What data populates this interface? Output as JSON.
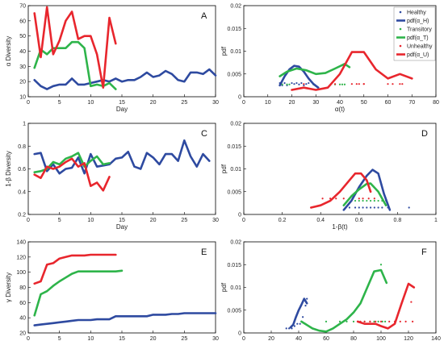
{
  "colors": {
    "healthy": "#2e4aa0",
    "transitory": "#2eb44a",
    "unhealthy": "#e8262d"
  },
  "legend": {
    "panel": "B",
    "entries": [
      {
        "text": "Healthy",
        "color": "#2e4aa0",
        "kind": "dot"
      },
      {
        "text": "pdf(α_H)",
        "color": "#2e4aa0",
        "kind": "line"
      },
      {
        "text": "Transitory",
        "color": "#2eb44a",
        "kind": "dot"
      },
      {
        "text": "pdf(α_T)",
        "color": "#2eb44a",
        "kind": "line"
      },
      {
        "text": "Unhealthy",
        "color": "#e8262d",
        "kind": "dot"
      },
      {
        "text": "pdf(α_U)",
        "color": "#e8262d",
        "kind": "line"
      }
    ]
  },
  "chart_data": [
    {
      "id": "A",
      "letter": "A",
      "type": "line",
      "xlabel": "Day",
      "ylabel": "α Diversity",
      "xlim": [
        0,
        30
      ],
      "ylim": [
        10,
        70
      ],
      "xticks": [
        0,
        5,
        10,
        15,
        20,
        25,
        30
      ],
      "yticks": [
        10,
        20,
        30,
        40,
        50,
        60,
        70
      ],
      "series": [
        {
          "color": "#2e4aa0",
          "x": [
            1,
            2,
            3,
            4,
            5,
            6,
            7,
            8,
            9,
            10,
            11,
            12,
            13,
            14,
            15,
            16,
            17,
            18,
            19,
            20,
            21,
            22,
            23,
            24,
            25,
            26,
            27,
            28,
            29,
            30
          ],
          "y": [
            21,
            17,
            15,
            17,
            18,
            18,
            22,
            18,
            18,
            19,
            20,
            21,
            20,
            22,
            20,
            21,
            21,
            23,
            26,
            23,
            24,
            27,
            25,
            21,
            20,
            26,
            26,
            25,
            28,
            24
          ]
        },
        {
          "color": "#2eb44a",
          "x": [
            1,
            2,
            3,
            4,
            5,
            6,
            7,
            8,
            9,
            10,
            11,
            12,
            13,
            14
          ],
          "y": [
            29,
            41,
            38,
            42,
            42,
            42,
            46,
            46,
            42,
            17,
            18,
            17,
            19,
            15
          ]
        },
        {
          "color": "#e8262d",
          "x": [
            1,
            2,
            3,
            4,
            5,
            6,
            7,
            8,
            9,
            10,
            11,
            12,
            13,
            14
          ],
          "y": [
            65,
            36,
            69,
            38,
            47,
            60,
            66,
            48,
            50,
            50,
            38,
            16,
            62,
            45
          ]
        }
      ]
    },
    {
      "id": "B",
      "letter": "B",
      "type": "line",
      "xlabel": "α(t)",
      "ylabel": "pdf",
      "xlim": [
        0,
        80
      ],
      "ylim": [
        0,
        0.02
      ],
      "xticks": [
        0,
        10,
        20,
        30,
        40,
        50,
        60,
        70,
        80
      ],
      "yticks": [
        0,
        0.005,
        0.01,
        0.015,
        0.02
      ],
      "series": [
        {
          "color": "#2e4aa0",
          "x": [
            15,
            17,
            19,
            21,
            23,
            25,
            27,
            29,
            31
          ],
          "y": [
            0.0025,
            0.0045,
            0.006,
            0.0068,
            0.0066,
            0.0055,
            0.004,
            0.0028,
            0.002
          ]
        },
        {
          "color": "#2eb44a",
          "x": [
            15,
            18,
            22,
            26,
            30,
            34,
            38,
            42,
            44
          ],
          "y": [
            0.0045,
            0.0055,
            0.0062,
            0.0058,
            0.005,
            0.0052,
            0.0062,
            0.0072,
            0.0065
          ]
        },
        {
          "color": "#e8262d",
          "x": [
            20,
            25,
            30,
            35,
            40,
            45,
            50,
            55,
            60,
            65,
            70
          ],
          "y": [
            0.0015,
            0.002,
            0.0015,
            0.002,
            0.005,
            0.0098,
            0.0098,
            0.006,
            0.004,
            0.005,
            0.004
          ]
        }
      ],
      "scatter": [
        {
          "color": "#2e4aa0",
          "x": [
            15,
            16,
            17,
            18,
            20,
            21,
            22,
            23,
            24,
            25,
            26,
            27
          ],
          "y": [
            0.003,
            0.0025,
            0.003,
            0.0025,
            0.003,
            0.0028,
            0.003,
            0.0027,
            0.003,
            0.0025,
            0.0028,
            0.003
          ]
        },
        {
          "color": "#2eb44a",
          "x": [
            16,
            18,
            19,
            29,
            38,
            40,
            41,
            42
          ],
          "y": [
            0.0027,
            0.0027,
            0.0027,
            0.0027,
            0.0027,
            0.0027,
            0.0027,
            0.0027
          ]
        },
        {
          "color": "#e8262d",
          "x": [
            25,
            38,
            45,
            47,
            48,
            50,
            50,
            60,
            62,
            65,
            66
          ],
          "y": [
            0.0028,
            0.0028,
            0.0028,
            0.0028,
            0.0028,
            0.0028,
            0.0028,
            0.0028,
            0.0028,
            0.0028,
            0.0028
          ]
        }
      ]
    },
    {
      "id": "C",
      "letter": "C",
      "type": "line",
      "xlabel": "Day",
      "ylabel": "1-β Diversity",
      "xlim": [
        0,
        30
      ],
      "ylim": [
        0.2,
        1
      ],
      "xticks": [
        0,
        5,
        10,
        15,
        20,
        25,
        30
      ],
      "yticks": [
        0.2,
        0.4,
        0.6,
        0.8,
        1
      ],
      "series": [
        {
          "color": "#2e4aa0",
          "x": [
            1,
            2,
            3,
            4,
            5,
            6,
            7,
            8,
            9,
            10,
            11,
            12,
            13,
            14,
            15,
            16,
            17,
            18,
            19,
            20,
            21,
            22,
            23,
            24,
            25,
            26,
            27,
            28,
            29
          ],
          "y": [
            0.73,
            0.74,
            0.58,
            0.64,
            0.56,
            0.6,
            0.61,
            0.7,
            0.56,
            0.73,
            0.62,
            0.63,
            0.64,
            0.69,
            0.7,
            0.75,
            0.62,
            0.6,
            0.74,
            0.7,
            0.64,
            0.73,
            0.73,
            0.67,
            0.85,
            0.71,
            0.62,
            0.73,
            0.67
          ]
        },
        {
          "color": "#2eb44a",
          "x": [
            1,
            2,
            3,
            4,
            5,
            6,
            7,
            8,
            9,
            10,
            11,
            12,
            13
          ],
          "y": [
            0.57,
            0.58,
            0.6,
            0.66,
            0.64,
            0.69,
            0.71,
            0.74,
            0.62,
            0.67,
            0.71,
            0.64,
            0.65
          ]
        },
        {
          "color": "#e8262d",
          "x": [
            1,
            2,
            3,
            4,
            5,
            6,
            7,
            8,
            9,
            10,
            11,
            12,
            13
          ],
          "y": [
            0.55,
            0.52,
            0.62,
            0.6,
            0.62,
            0.66,
            0.69,
            0.62,
            0.65,
            0.45,
            0.48,
            0.41,
            0.53
          ]
        }
      ]
    },
    {
      "id": "D",
      "letter": "D",
      "type": "line",
      "xlabel": "1-β(t)",
      "ylabel": "pdf",
      "xlim": [
        0,
        1
      ],
      "ylim": [
        0,
        0.02
      ],
      "xticks": [
        0,
        0.2,
        0.4,
        0.6,
        0.8,
        1
      ],
      "yticks": [
        0,
        0.005,
        0.01,
        0.015,
        0.02
      ],
      "series": [
        {
          "color": "#2e4aa0",
          "x": [
            0.52,
            0.56,
            0.6,
            0.64,
            0.67,
            0.7,
            0.73,
            0.76
          ],
          "y": [
            0.001,
            0.003,
            0.006,
            0.0085,
            0.0098,
            0.009,
            0.0045,
            0.001
          ]
        },
        {
          "color": "#2eb44a",
          "x": [
            0.52,
            0.56,
            0.6,
            0.64,
            0.66,
            0.7,
            0.74
          ],
          "y": [
            0.002,
            0.004,
            0.0055,
            0.0067,
            0.0068,
            0.005,
            0.002
          ]
        },
        {
          "color": "#e8262d",
          "x": [
            0.35,
            0.4,
            0.45,
            0.5,
            0.55,
            0.58,
            0.61,
            0.64,
            0.66
          ],
          "y": [
            0.0015,
            0.002,
            0.003,
            0.005,
            0.0075,
            0.009,
            0.009,
            0.0075,
            0.005
          ]
        }
      ],
      "scatter": [
        {
          "color": "#2e4aa0",
          "x": [
            0.55,
            0.58,
            0.6,
            0.62,
            0.64,
            0.66,
            0.68,
            0.7,
            0.72,
            0.75,
            0.86
          ],
          "y": [
            0.0015,
            0.0015,
            0.0015,
            0.0015,
            0.0015,
            0.0015,
            0.0015,
            0.0015,
            0.0015,
            0.0015,
            0.0015
          ]
        },
        {
          "color": "#2eb44a",
          "x": [
            0.58,
            0.6,
            0.62,
            0.64,
            0.66,
            0.68,
            0.7,
            0.72,
            0.74
          ],
          "y": [
            0.003,
            0.003,
            0.003,
            0.003,
            0.003,
            0.003,
            0.003,
            0.003,
            0.003
          ]
        },
        {
          "color": "#e8262d",
          "x": [
            0.41,
            0.45,
            0.48,
            0.52,
            0.55,
            0.6,
            0.62,
            0.65,
            0.68
          ],
          "y": [
            0.0035,
            0.0035,
            0.0035,
            0.0035,
            0.0035,
            0.0035,
            0.0035,
            0.0035,
            0.0035
          ]
        }
      ]
    },
    {
      "id": "E",
      "letter": "E",
      "type": "line",
      "xlabel": "Day",
      "ylabel": "γ Diversity",
      "xlim": [
        0,
        30
      ],
      "ylim": [
        20,
        140
      ],
      "xticks": [
        0,
        5,
        10,
        15,
        20,
        25,
        30
      ],
      "yticks": [
        20,
        40,
        60,
        80,
        100,
        120,
        140
      ],
      "series": [
        {
          "color": "#2e4aa0",
          "x": [
            1,
            2,
            3,
            4,
            5,
            6,
            7,
            8,
            9,
            10,
            11,
            12,
            13,
            14,
            15,
            16,
            17,
            18,
            19,
            20,
            21,
            22,
            23,
            24,
            25,
            26,
            27,
            28,
            29,
            30
          ],
          "y": [
            30,
            31,
            32,
            33,
            34,
            35,
            36,
            37,
            37,
            37,
            38,
            38,
            38,
            42,
            42,
            42,
            42,
            42,
            42,
            44,
            44,
            44,
            45,
            45,
            46,
            46,
            46,
            46,
            46,
            46
          ]
        },
        {
          "color": "#2eb44a",
          "x": [
            1,
            2,
            3,
            4,
            5,
            6,
            7,
            8,
            9,
            10,
            11,
            12,
            13,
            14,
            15
          ],
          "y": [
            43,
            71,
            75,
            82,
            88,
            93,
            98,
            101,
            101,
            101,
            101,
            101,
            101,
            101,
            102
          ]
        },
        {
          "color": "#e8262d",
          "x": [
            1,
            2,
            3,
            4,
            5,
            6,
            7,
            8,
            9,
            10,
            11,
            12,
            13,
            14
          ],
          "y": [
            85,
            88,
            110,
            112,
            118,
            120,
            122,
            122,
            122,
            123,
            123,
            123,
            123,
            123
          ]
        }
      ]
    },
    {
      "id": "F",
      "letter": "F",
      "type": "line",
      "xlabel": "γ(t)",
      "ylabel": "pdf",
      "xlim": [
        0,
        140
      ],
      "ylim": [
        0,
        0.02
      ],
      "xticks": [
        0,
        20,
        40,
        60,
        80,
        100,
        120,
        140
      ],
      "yticks": [
        0,
        0.005,
        0.01,
        0.015,
        0.02
      ],
      "series": [
        {
          "color": "#2e4aa0",
          "x": [
            34,
            36,
            38,
            40,
            42,
            44,
            46
          ],
          "y": [
            0.0012,
            0.0018,
            0.0035,
            0.005,
            0.0062,
            0.0075,
            0.0065
          ]
        },
        {
          "color": "#2eb44a",
          "x": [
            42,
            50,
            55,
            60,
            65,
            70,
            75,
            80,
            85,
            90,
            95,
            100,
            104
          ],
          "y": [
            0.0025,
            0.001,
            0.0005,
            0.0003,
            0.001,
            0.002,
            0.003,
            0.0045,
            0.0065,
            0.01,
            0.0135,
            0.0138,
            0.011
          ]
        },
        {
          "color": "#e8262d",
          "x": [
            83,
            88,
            92,
            96,
            100,
            105,
            110,
            115,
            120,
            124
          ],
          "y": [
            0.0025,
            0.002,
            0.002,
            0.002,
            0.0015,
            0.001,
            0.002,
            0.0065,
            0.0108,
            0.01
          ]
        }
      ],
      "scatter": [
        {
          "color": "#2e4aa0",
          "x": [
            31,
            33,
            35,
            37,
            39,
            41,
            43,
            45,
            46
          ],
          "y": [
            0.001,
            0.001,
            0.001,
            0.0015,
            0.002,
            0.002,
            0.0035,
            0.006,
            0.0075
          ]
        },
        {
          "color": "#2eb44a",
          "x": [
            42,
            45,
            60,
            70,
            75,
            80,
            88,
            92,
            95,
            98,
            100,
            101,
            103
          ],
          "y": [
            0.0025,
            0.002,
            0.0025,
            0.0025,
            0.0025,
            0.0025,
            0.0025,
            0.0025,
            0.0025,
            0.0025,
            0.015,
            0.0025,
            0.0025
          ]
        },
        {
          "color": "#e8262d",
          "x": [
            83,
            85,
            88,
            92,
            96,
            100,
            106,
            110,
            114,
            118,
            122,
            123
          ],
          "y": [
            0.0025,
            0.0025,
            0.0025,
            0.0025,
            0.0025,
            0.0025,
            0.0025,
            0.0025,
            0.0025,
            0.0025,
            0.0068,
            0.0025
          ]
        }
      ]
    }
  ]
}
